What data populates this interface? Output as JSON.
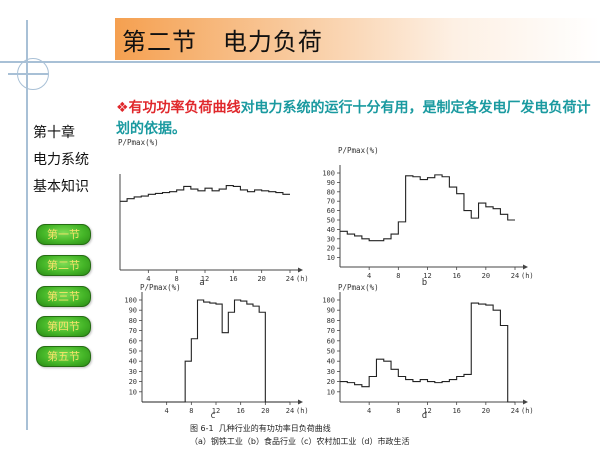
{
  "header": {
    "title": "第二节   电力负荷"
  },
  "intro": {
    "prefix": "❖",
    "highlight": "有功功率负荷曲线",
    "rest": "对电力系统的运行十分有用，是制定各发电厂发电负荷计划的依据。"
  },
  "sidebar": {
    "chapter": "第十章",
    "line2": "电力系统",
    "line3": "基本知识"
  },
  "nav": [
    "第一节",
    "第二节",
    "第三节",
    "第四节",
    "第五节"
  ],
  "colors": {
    "header_orange": "#f5a050",
    "highlight_red": "#e0282c",
    "body_teal": "#1a9aa0",
    "nav_green": "#45b628",
    "nav_text": "#f6e36a"
  },
  "chart_data": [
    {
      "type": "line",
      "step": true,
      "ylabel": "P/Pmax(%)",
      "xlabel": "",
      "x_unit": "(h)",
      "sublabel": "a",
      "xlim": [
        0,
        24
      ],
      "ylim": [
        0,
        100
      ],
      "x_ticks": [
        4,
        8,
        12,
        16,
        20,
        24
      ],
      "y_ticks": [],
      "x": [
        0,
        1,
        2,
        3,
        4,
        5,
        6,
        7,
        8,
        9,
        10,
        11,
        12,
        13,
        14,
        15,
        16,
        17,
        18,
        19,
        20,
        21,
        22,
        23,
        24
      ],
      "y": [
        78,
        81,
        83,
        84,
        86,
        87,
        88,
        89,
        91,
        95,
        92,
        90,
        93,
        90,
        92,
        96,
        95,
        91,
        89,
        91,
        90,
        89,
        88,
        86,
        86
      ]
    },
    {
      "type": "line",
      "step": true,
      "ylabel": "P/Pmax(%)",
      "xlabel": "",
      "x_unit": "(h)",
      "sublabel": "b",
      "xlim": [
        0,
        24
      ],
      "ylim": [
        0,
        100
      ],
      "x_ticks": [
        4,
        8,
        12,
        16,
        20,
        24
      ],
      "y_ticks": [
        10,
        20,
        30,
        40,
        50,
        60,
        70,
        80,
        90,
        100
      ],
      "x": [
        0,
        1,
        2,
        3,
        4,
        5,
        6,
        7,
        8,
        9,
        10,
        11,
        12,
        13,
        14,
        15,
        16,
        17,
        18,
        19,
        20,
        21,
        22,
        23,
        24
      ],
      "y": [
        38,
        35,
        33,
        30,
        28,
        28,
        30,
        35,
        48,
        97,
        96,
        93,
        95,
        98,
        96,
        85,
        78,
        60,
        52,
        68,
        64,
        62,
        56,
        50,
        50
      ]
    },
    {
      "type": "line",
      "step": true,
      "ylabel": "P/Pmax(%)",
      "xlabel": "",
      "x_unit": "(h)",
      "sublabel": "c",
      "xlim": [
        0,
        24
      ],
      "ylim": [
        0,
        100
      ],
      "x_ticks": [
        4,
        8,
        12,
        16,
        20,
        24
      ],
      "y_ticks": [
        10,
        20,
        30,
        40,
        50,
        60,
        70,
        80,
        90,
        100
      ],
      "x": [
        0,
        6,
        7,
        8,
        9,
        10,
        11,
        12,
        13,
        14,
        15,
        16,
        17,
        18,
        19,
        20,
        24
      ],
      "y": [
        0,
        0,
        40,
        62,
        100,
        98,
        97,
        96,
        68,
        88,
        100,
        99,
        96,
        94,
        88,
        0,
        0
      ]
    },
    {
      "type": "line",
      "step": true,
      "ylabel": "P/Pmax(%)",
      "xlabel": "",
      "x_unit": "(h)",
      "sublabel": "d",
      "xlim": [
        0,
        24
      ],
      "ylim": [
        0,
        100
      ],
      "x_ticks": [
        4,
        8,
        12,
        16,
        20,
        24
      ],
      "y_ticks": [
        10,
        20,
        30,
        40,
        50,
        60,
        70,
        80,
        90,
        100
      ],
      "x": [
        0,
        1,
        2,
        3,
        4,
        5,
        6,
        7,
        8,
        9,
        10,
        11,
        12,
        13,
        14,
        15,
        16,
        17,
        18,
        19,
        20,
        21,
        22,
        23,
        24
      ],
      "y": [
        20,
        19,
        17,
        15,
        25,
        42,
        40,
        32,
        25,
        22,
        20,
        22,
        20,
        19,
        20,
        22,
        25,
        27,
        97,
        96,
        95,
        90,
        75,
        0,
        0
      ]
    }
  ],
  "figure": {
    "caption": "图 6-1  几种行业的有功功率日负荷曲线",
    "subcaption": "（a）钢铁工业（b）食品行业（c）农村加工业（d）市政生活"
  }
}
